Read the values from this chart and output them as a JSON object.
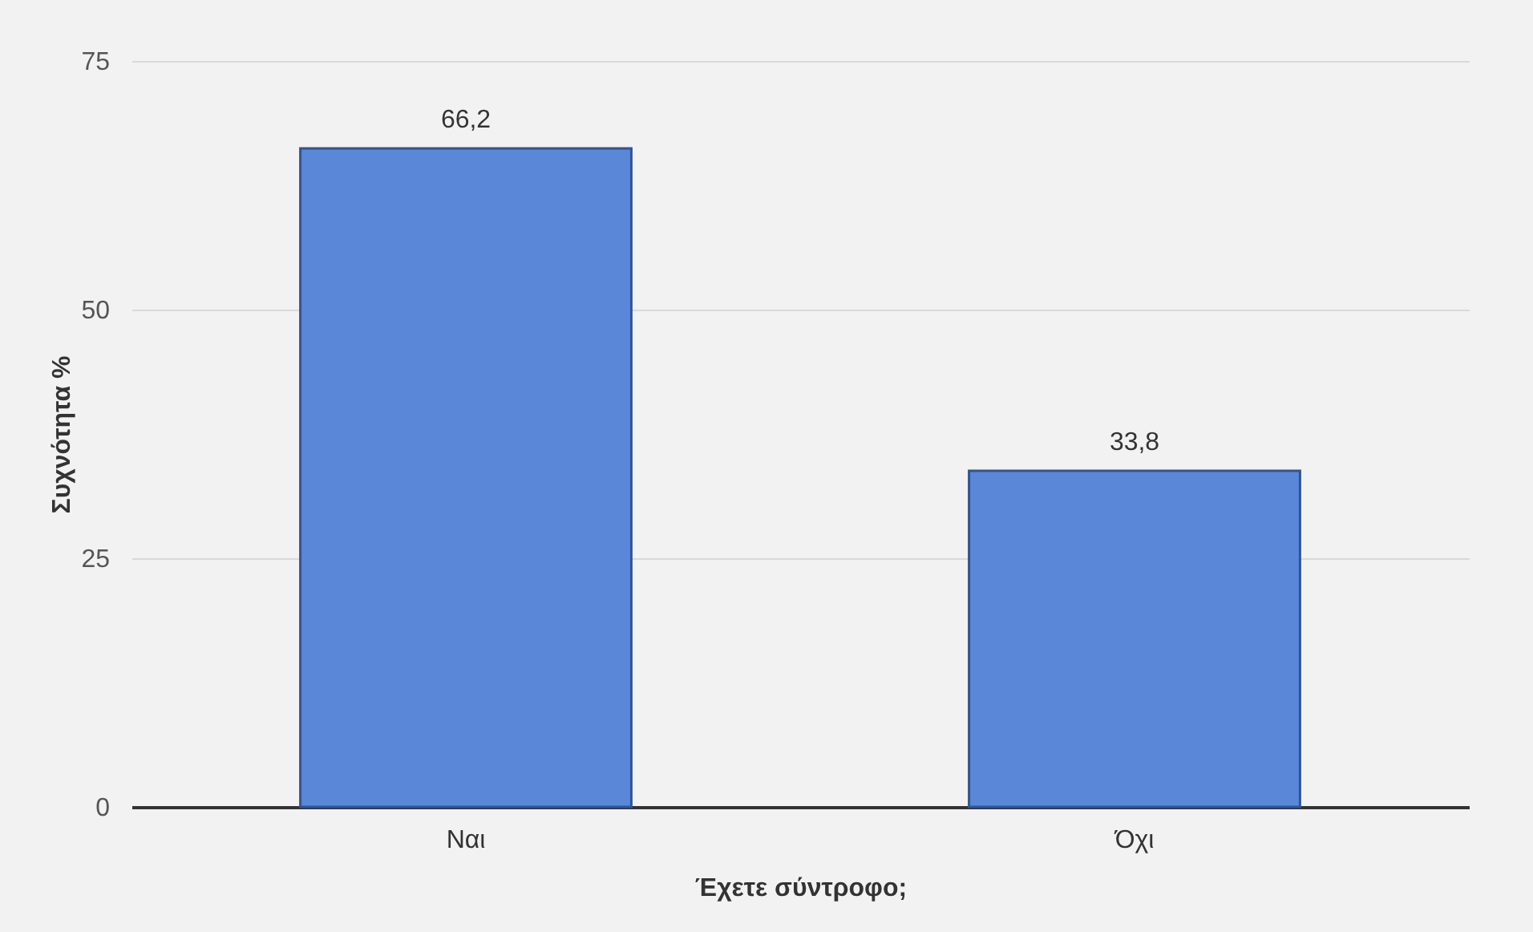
{
  "chart_data": {
    "type": "bar",
    "xlabel": "Έχετε σύντροφο;",
    "ylabel": "Συχνότητα %",
    "categories": [
      "Ναι",
      "Όχι"
    ],
    "values": [
      66.2,
      33.8
    ],
    "value_labels": [
      "66,2",
      "33,8"
    ],
    "color": "#5b87d8",
    "ylim": [
      0,
      75
    ],
    "yticks": [
      0,
      25,
      50,
      75
    ],
    "grid": "y"
  }
}
